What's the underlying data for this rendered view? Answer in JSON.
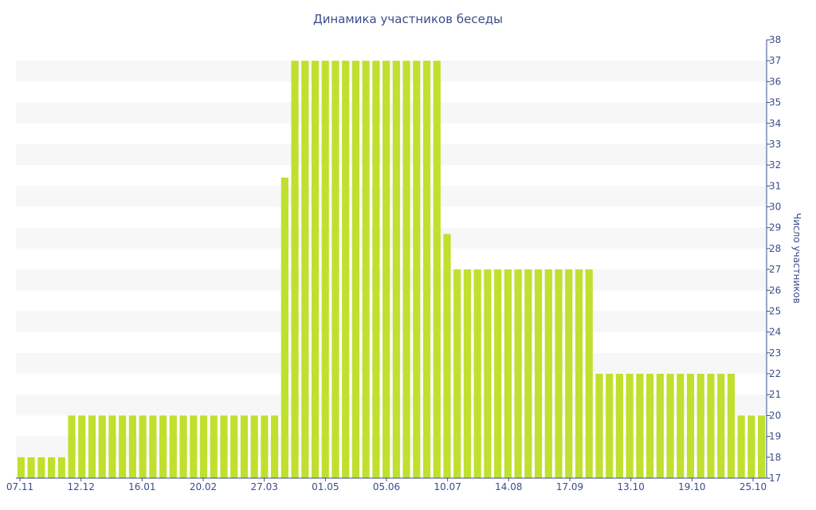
{
  "chart_data": {
    "type": "bar",
    "title": "Динамика участников беседы",
    "ylabel": "Число участников",
    "xlabel": "",
    "ylim": [
      17,
      38
    ],
    "y_ticks": [
      17,
      18,
      19,
      20,
      21,
      22,
      23,
      24,
      25,
      26,
      27,
      28,
      29,
      30,
      31,
      32,
      33,
      34,
      35,
      36,
      37,
      38
    ],
    "x_tick_labels": [
      "07.11",
      "12.12",
      "16.01",
      "20.02",
      "27.03",
      "01.05",
      "05.06",
      "10.07",
      "14.08",
      "17.09",
      "13.10",
      "19.10",
      "25.10"
    ],
    "grid": "horizontal alternating bands",
    "y_axis_position": "right",
    "colors": {
      "bar": "#bfe02e",
      "band": "#f7f7f7",
      "text": "#3a4d8c",
      "axis": "#3a4d8c"
    },
    "values": [
      18,
      18,
      18,
      18,
      18,
      20,
      20,
      20,
      20,
      20,
      20,
      20,
      20,
      20,
      20,
      20,
      20,
      20,
      20,
      20,
      20,
      20,
      20,
      20,
      20,
      20,
      31.4,
      37,
      37,
      37,
      37,
      37,
      37,
      37,
      37,
      37,
      37,
      37,
      37,
      37,
      37,
      37,
      28.7,
      27,
      27,
      27,
      27,
      27,
      27,
      27,
      27,
      27,
      27,
      27,
      27,
      27,
      27,
      22,
      22,
      22,
      22,
      22,
      22,
      22,
      22,
      22,
      22,
      22,
      22,
      22,
      22,
      20,
      20,
      20
    ]
  }
}
